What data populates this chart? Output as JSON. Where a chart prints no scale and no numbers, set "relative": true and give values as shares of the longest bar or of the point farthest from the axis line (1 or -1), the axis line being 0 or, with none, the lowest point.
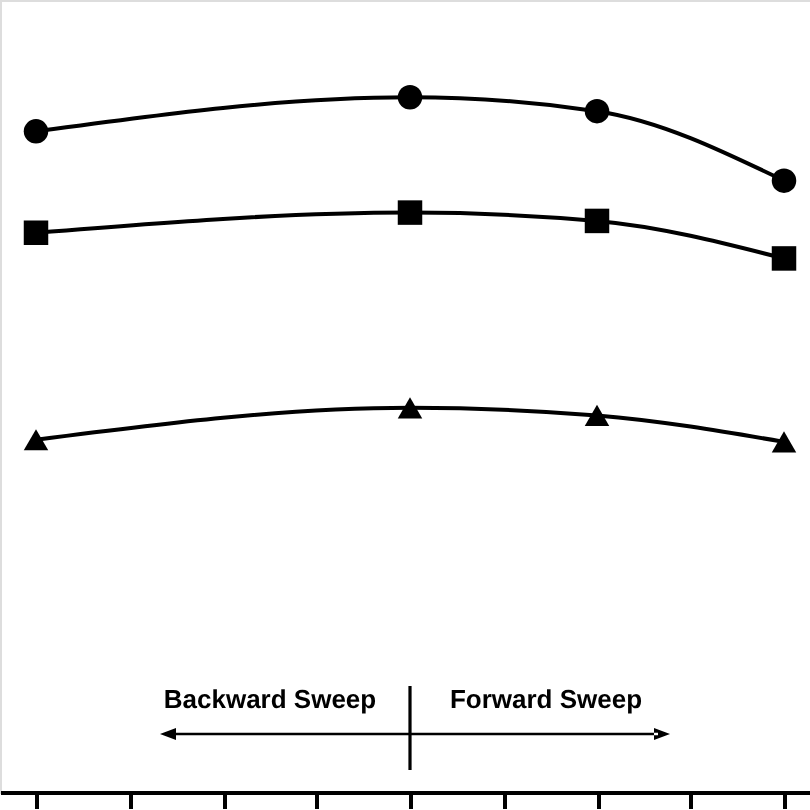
{
  "chart_data": {
    "type": "line",
    "relative": true,
    "categories": [
      null,
      null,
      null,
      null,
      null,
      null,
      null,
      null,
      null
    ],
    "series": [
      {
        "color": "#000000",
        "marker": "circle",
        "values": [
          0.951,
          null,
          null,
          null,
          1,
          null,
          0.98,
          null,
          0.88
        ]
      },
      {
        "color": "#000000",
        "marker": "square",
        "values": [
          0.805,
          null,
          null,
          null,
          0.834,
          null,
          0.822,
          null,
          0.768
        ]
      },
      {
        "color": "#000000",
        "marker": "triangle",
        "values": [
          0.507,
          null,
          null,
          null,
          0.553,
          null,
          0.542,
          null,
          0.504
        ]
      }
    ],
    "annotations": [
      "Backward Sweep",
      "Forward Sweep"
    ],
    "line_style": "solid"
  }
}
